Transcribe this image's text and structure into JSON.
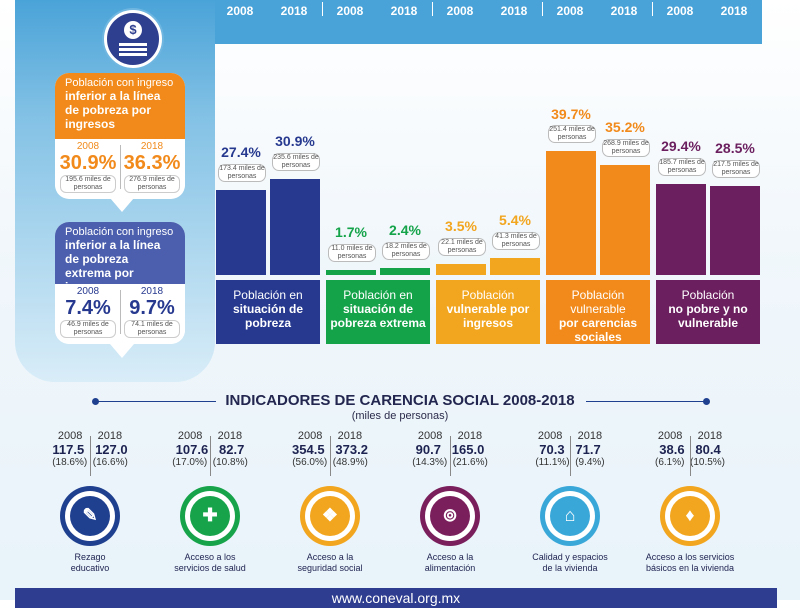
{
  "header_years": [
    "2008",
    "2018",
    "2008",
    "2018",
    "2008",
    "2018",
    "2008",
    "2018",
    "2008",
    "2018"
  ],
  "icon_name": "money-coin-icon",
  "cards": {
    "ingresos": {
      "label_line1": "Población con ingreso",
      "label_bold": "inferior a la línea de pobreza por ingresos",
      "y1": "2008",
      "y2": "2018",
      "p1": "30.9%",
      "p2": "36.3%",
      "m1": "195.6 miles de personas",
      "m2": "276.9 miles de personas"
    },
    "extrema": {
      "label_line1": "Población con ingreso",
      "label_bold": "inferior a la línea de pobreza extrema por ingresos",
      "y1": "2008",
      "y2": "2018",
      "p1": "7.4%",
      "p2": "9.7%",
      "m1": "46.9 miles de personas",
      "m2": "74.1 miles de personas"
    }
  },
  "chart_data": {
    "type": "bar",
    "categories": [
      "Población en situación de pobreza",
      "Población en situación de pobreza extrema",
      "Población vulnerable por ingresos",
      "Población vulnerable por carencias sociales",
      "Población no pobre y no vulnerable"
    ],
    "series": [
      {
        "name": "2008",
        "values": [
          27.4,
          1.7,
          3.5,
          39.7,
          29.4
        ]
      },
      {
        "name": "2018",
        "values": [
          30.9,
          2.4,
          5.4,
          35.2,
          28.5
        ]
      }
    ],
    "value_labels_2008": [
      "27.4%",
      "1.7%",
      "3.5%",
      "39.7%",
      "29.4%"
    ],
    "value_labels_2018": [
      "30.9%",
      "2.4%",
      "5.4%",
      "35.2%",
      "28.5%"
    ],
    "people_2008": [
      "173.4 miles de personas",
      "11.0 miles de personas",
      "22.1 miles de personas",
      "251.4 miles de personas",
      "185.7 miles de personas"
    ],
    "people_2018": [
      "235.6 miles de personas",
      "18.2 miles de personas",
      "41.3 miles de personas",
      "268.9 miles de personas",
      "217.5 miles de personas"
    ],
    "labels": [
      {
        "l1": "Población en",
        "l2": "situación de",
        "l3": "pobreza"
      },
      {
        "l1": "Población en",
        "l2": "situación de",
        "l3": "pobreza extrema"
      },
      {
        "l1": "Población",
        "l2": "vulnerable por",
        "l3": "ingresos"
      },
      {
        "l1": "Población vulnerable",
        "l2": "por carencias",
        "l3": "sociales"
      },
      {
        "l1": "Población",
        "l2": "no pobre y no",
        "l3": "vulnerable"
      }
    ],
    "colors": [
      "#26398f",
      "#15a34a",
      "#f2a51e",
      "#f18a1b",
      "#6b1f5f"
    ],
    "ylim": [
      0,
      45
    ]
  },
  "indicators": {
    "title": "INDICADORES DE CARENCIA SOCIAL 2008-2018",
    "subtitle": "(miles de personas)",
    "items": [
      {
        "y1": "2008",
        "y2": "2018",
        "v1": "117.5",
        "v2": "127.0",
        "p1": "(18.6%)",
        "p2": "(16.6%)",
        "cap1": "Rezago",
        "cap2": "educativo",
        "color": "#1f3f8f",
        "icon": "pencil-icon",
        "glyph": "✎"
      },
      {
        "y1": "2008",
        "y2": "2018",
        "v1": "107.6",
        "v2": "82.7",
        "p1": "(17.0%)",
        "p2": "(10.8%)",
        "cap1": "Acceso a los",
        "cap2": "servicios de salud",
        "color": "#16a34a",
        "icon": "doctor-icon",
        "glyph": "✚"
      },
      {
        "y1": "2008",
        "y2": "2018",
        "v1": "354.5",
        "v2": "373.2",
        "p1": "(56.0%)",
        "p2": "(48.9%)",
        "cap1": "Acceso a la",
        "cap2": "seguridad social",
        "color": "#f2a51e",
        "icon": "social-security-icon",
        "glyph": "❖"
      },
      {
        "y1": "2008",
        "y2": "2018",
        "v1": "90.7",
        "v2": "165.0",
        "p1": "(14.3%)",
        "p2": "(21.6%)",
        "cap1": "Acceso a la",
        "cap2": "alimentación",
        "color": "#7a1f5c",
        "icon": "plate-icon",
        "glyph": "⊚"
      },
      {
        "y1": "2008",
        "y2": "2018",
        "v1": "70.3",
        "v2": "71.7",
        "p1": "(11.1%)",
        "p2": "(9.4%)",
        "cap1": "Calidad y espacios",
        "cap2": "de la vivienda",
        "color": "#3aa7d9",
        "icon": "house-icon",
        "glyph": "⌂"
      },
      {
        "y1": "2008",
        "y2": "2018",
        "v1": "38.6",
        "v2": "80.4",
        "p1": "(6.1%)",
        "p2": "(10.5%)",
        "cap1": "Acceso a los servicios",
        "cap2": "básicos en la vivienda",
        "color": "#f2a51e",
        "icon": "water-tap-icon",
        "glyph": "♦"
      }
    ]
  },
  "footer": {
    "url": "www.coneval.org.mx"
  }
}
